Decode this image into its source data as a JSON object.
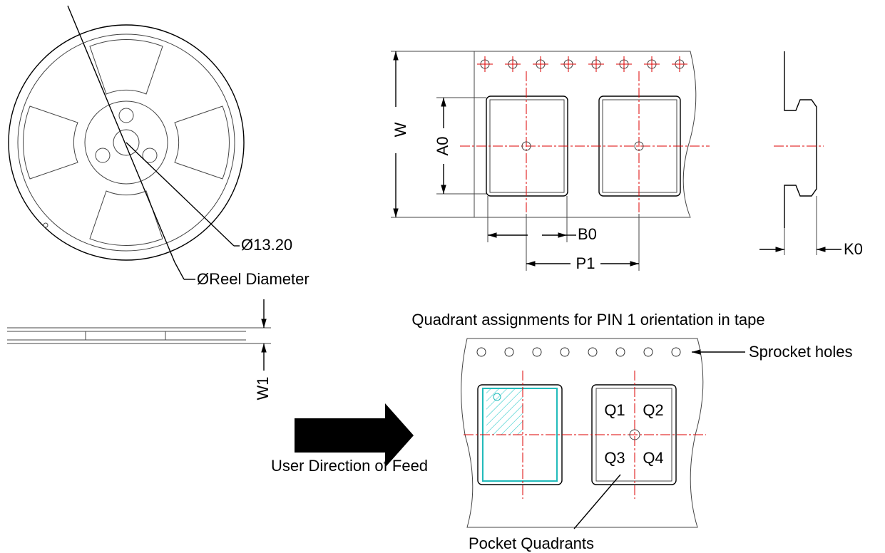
{
  "reel": {
    "hub_label": "Ø13.20",
    "diameter_label": "ØReel Diameter",
    "width_label": "W1"
  },
  "tape": {
    "width_label": "W",
    "a0_label": "A0",
    "b0_label": "B0",
    "p1_label": "P1",
    "k0_label": "K0"
  },
  "quadrants": {
    "title": "Quadrant assignments for PIN 1 orientation in tape",
    "sprocket_label": "Sprocket holes",
    "feed_label": "User Direction of Feed",
    "pocket_label": "Pocket Quadrants",
    "labels": [
      "Q1",
      "Q2",
      "Q3",
      "Q4"
    ]
  }
}
